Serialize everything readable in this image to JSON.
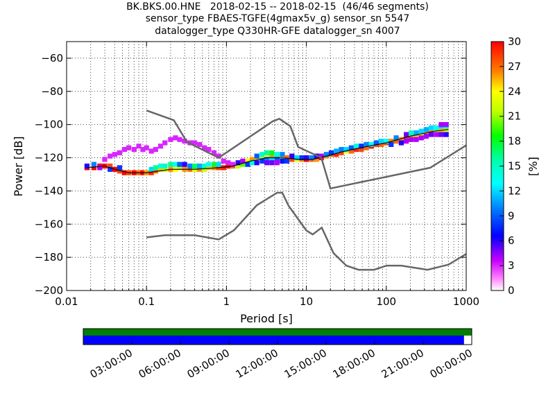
{
  "title": {
    "line1": "BK.BKS.00.HNE   2018-02-15 -- 2018-02-15  (46/46 segments)",
    "line2": "sensor_type FBAES-TGFE(4gmax5v_g) sensor_sn 5547",
    "line3": "datalogger_type Q330HR-GFE datalogger_sn 4007"
  },
  "chart_data": {
    "type": "heatmap",
    "xlabel": "Period [s]",
    "ylabel": "Power [dB]",
    "xscale": "log",
    "xlim": [
      0.01,
      1000
    ],
    "ylim": [
      -200,
      -50
    ],
    "x_ticks": [
      0.01,
      0.1,
      1,
      10,
      100,
      1000
    ],
    "x_tick_labels": [
      "0.01",
      "0.1",
      "1",
      "10",
      "100",
      "1000"
    ],
    "y_ticks": [
      -200,
      -180,
      -160,
      -140,
      -120,
      -100,
      -80,
      -60
    ],
    "y_tick_labels": [
      "−200",
      "−180",
      "−160",
      "−140",
      "−120",
      "−100",
      "−80",
      "−60"
    ],
    "grid": true,
    "colorbar": {
      "label": "[%]",
      "min": 0,
      "max": 30,
      "ticks": [
        0,
        3,
        6,
        9,
        12,
        15,
        18,
        21,
        24,
        27,
        30
      ],
      "tick_labels": [
        "0",
        "3",
        "6",
        "9",
        "12",
        "15",
        "18",
        "21",
        "24",
        "27",
        "30"
      ],
      "colormap": "pqlx"
    },
    "noise_models": {
      "color": "#666666",
      "high": {
        "period": [
          0.1,
          0.22,
          0.32,
          0.8,
          3.8,
          4.6,
          6.3,
          7.9,
          15.4,
          20,
          354.8,
          1000
        ],
        "power": [
          -91.5,
          -97.4,
          -110.5,
          -120,
          -98,
          -96.5,
          -101,
          -113.5,
          -120,
          -138.5,
          -126,
          -112.5
        ]
      },
      "low": {
        "period": [
          0.1,
          0.17,
          0.4,
          0.8,
          1.24,
          2.4,
          4.3,
          5,
          6,
          10,
          12,
          15.6,
          21.9,
          31.6,
          45,
          70,
          101,
          154,
          328,
          600,
          1000
        ],
        "power": [
          -168,
          -166.7,
          -166.7,
          -169.2,
          -163.7,
          -148.6,
          -141.1,
          -141.1,
          -149,
          -163.8,
          -166.2,
          -162.1,
          -177.5,
          -185,
          -187.5,
          -187.5,
          -185,
          -185,
          -187.5,
          -184.4,
          -178
        ]
      }
    },
    "ppsd_bins": [
      {
        "period": 0.018,
        "power": -126,
        "pct": 30
      },
      {
        "period": 0.018,
        "power": -125,
        "pct": 6
      },
      {
        "period": 0.022,
        "power": -126,
        "pct": 30
      },
      {
        "period": 0.022,
        "power": -124,
        "pct": 10
      },
      {
        "period": 0.026,
        "power": -125,
        "pct": 30
      },
      {
        "period": 0.026,
        "power": -126,
        "pct": 4
      },
      {
        "period": 0.03,
        "power": -125,
        "pct": 30
      },
      {
        "period": 0.03,
        "power": -121,
        "pct": 3
      },
      {
        "period": 0.035,
        "power": -125,
        "pct": 28
      },
      {
        "period": 0.035,
        "power": -127,
        "pct": 8
      },
      {
        "period": 0.035,
        "power": -119,
        "pct": 3
      },
      {
        "period": 0.04,
        "power": -127,
        "pct": 30
      },
      {
        "period": 0.04,
        "power": -118,
        "pct": 3
      },
      {
        "period": 0.046,
        "power": -128,
        "pct": 28
      },
      {
        "period": 0.046,
        "power": -126,
        "pct": 8
      },
      {
        "period": 0.046,
        "power": -117,
        "pct": 3
      },
      {
        "period": 0.053,
        "power": -129,
        "pct": 30
      },
      {
        "period": 0.053,
        "power": -115,
        "pct": 3
      },
      {
        "period": 0.06,
        "power": -129,
        "pct": 28
      },
      {
        "period": 0.06,
        "power": -114,
        "pct": 3
      },
      {
        "period": 0.07,
        "power": -129,
        "pct": 30
      },
      {
        "period": 0.07,
        "power": -115,
        "pct": 3
      },
      {
        "period": 0.08,
        "power": -129,
        "pct": 27
      },
      {
        "period": 0.08,
        "power": -113,
        "pct": 3
      },
      {
        "period": 0.09,
        "power": -129,
        "pct": 30
      },
      {
        "period": 0.09,
        "power": -115,
        "pct": 3
      },
      {
        "period": 0.1,
        "power": -129,
        "pct": 26
      },
      {
        "period": 0.1,
        "power": -114,
        "pct": 3
      },
      {
        "period": 0.115,
        "power": -129,
        "pct": 29
      },
      {
        "period": 0.115,
        "power": -127,
        "pct": 12
      },
      {
        "period": 0.115,
        "power": -116,
        "pct": 3
      },
      {
        "period": 0.13,
        "power": -128,
        "pct": 27
      },
      {
        "period": 0.13,
        "power": -126,
        "pct": 16
      },
      {
        "period": 0.13,
        "power": -115,
        "pct": 3
      },
      {
        "period": 0.15,
        "power": -127,
        "pct": 25
      },
      {
        "period": 0.15,
        "power": -125,
        "pct": 14
      },
      {
        "period": 0.15,
        "power": -113,
        "pct": 3
      },
      {
        "period": 0.17,
        "power": -127,
        "pct": 22
      },
      {
        "period": 0.17,
        "power": -125,
        "pct": 15
      },
      {
        "period": 0.17,
        "power": -111,
        "pct": 3
      },
      {
        "period": 0.2,
        "power": -127,
        "pct": 26
      },
      {
        "period": 0.2,
        "power": -124,
        "pct": 16
      },
      {
        "period": 0.2,
        "power": -109,
        "pct": 3
      },
      {
        "period": 0.23,
        "power": -127,
        "pct": 24
      },
      {
        "period": 0.23,
        "power": -124,
        "pct": 13
      },
      {
        "period": 0.23,
        "power": -108,
        "pct": 3
      },
      {
        "period": 0.26,
        "power": -126,
        "pct": 22
      },
      {
        "period": 0.26,
        "power": -124,
        "pct": 9
      },
      {
        "period": 0.26,
        "power": -109,
        "pct": 3
      },
      {
        "period": 0.3,
        "power": -127,
        "pct": 26
      },
      {
        "period": 0.3,
        "power": -124,
        "pct": 6
      },
      {
        "period": 0.3,
        "power": -110,
        "pct": 3
      },
      {
        "period": 0.35,
        "power": -127,
        "pct": 27
      },
      {
        "period": 0.35,
        "power": -125,
        "pct": 10
      },
      {
        "period": 0.35,
        "power": -111,
        "pct": 3
      },
      {
        "period": 0.4,
        "power": -127,
        "pct": 23
      },
      {
        "period": 0.4,
        "power": -125,
        "pct": 17
      },
      {
        "period": 0.4,
        "power": -111,
        "pct": 3
      },
      {
        "period": 0.46,
        "power": -127,
        "pct": 26
      },
      {
        "period": 0.46,
        "power": -125,
        "pct": 11
      },
      {
        "period": 0.46,
        "power": -112,
        "pct": 3
      },
      {
        "period": 0.53,
        "power": -127,
        "pct": 22
      },
      {
        "period": 0.53,
        "power": -125,
        "pct": 15
      },
      {
        "period": 0.53,
        "power": -114,
        "pct": 3
      },
      {
        "period": 0.6,
        "power": -126,
        "pct": 25
      },
      {
        "period": 0.6,
        "power": -124,
        "pct": 13
      },
      {
        "period": 0.6,
        "power": -115,
        "pct": 3
      },
      {
        "period": 0.7,
        "power": -126,
        "pct": 26
      },
      {
        "period": 0.7,
        "power": -124,
        "pct": 18
      },
      {
        "period": 0.7,
        "power": -117,
        "pct": 3
      },
      {
        "period": 0.8,
        "power": -126,
        "pct": 28
      },
      {
        "period": 0.8,
        "power": -124,
        "pct": 12
      },
      {
        "period": 0.8,
        "power": -119,
        "pct": 3
      },
      {
        "period": 0.92,
        "power": -126,
        "pct": 29
      },
      {
        "period": 0.92,
        "power": -122,
        "pct": 3
      },
      {
        "period": 1.05,
        "power": -125,
        "pct": 30
      },
      {
        "period": 1.05,
        "power": -123,
        "pct": 3
      },
      {
        "period": 1.2,
        "power": -125,
        "pct": 27
      },
      {
        "period": 1.2,
        "power": -124,
        "pct": 3
      },
      {
        "period": 1.4,
        "power": -125,
        "pct": 22
      },
      {
        "period": 1.4,
        "power": -123,
        "pct": 6
      },
      {
        "period": 1.6,
        "power": -124,
        "pct": 20
      },
      {
        "period": 1.6,
        "power": -122,
        "pct": 4
      },
      {
        "period": 1.85,
        "power": -122,
        "pct": 24
      },
      {
        "period": 1.85,
        "power": -124,
        "pct": 8
      },
      {
        "period": 2.1,
        "power": -121,
        "pct": 26
      },
      {
        "period": 2.1,
        "power": -123,
        "pct": 14
      },
      {
        "period": 2.4,
        "power": -121,
        "pct": 24
      },
      {
        "period": 2.4,
        "power": -119,
        "pct": 9
      },
      {
        "period": 2.4,
        "power": -123,
        "pct": 6
      },
      {
        "period": 2.8,
        "power": -120,
        "pct": 22
      },
      {
        "period": 2.8,
        "power": -118,
        "pct": 15
      },
      {
        "period": 2.8,
        "power": -122,
        "pct": 8
      },
      {
        "period": 3.2,
        "power": -119,
        "pct": 24
      },
      {
        "period": 3.2,
        "power": -117,
        "pct": 16
      },
      {
        "period": 3.2,
        "power": -121,
        "pct": 10
      },
      {
        "period": 3.2,
        "power": -123,
        "pct": 5
      },
      {
        "period": 3.7,
        "power": -119,
        "pct": 26
      },
      {
        "period": 3.7,
        "power": -117,
        "pct": 18
      },
      {
        "period": 3.7,
        "power": -121,
        "pct": 12
      },
      {
        "period": 3.7,
        "power": -123,
        "pct": 5
      },
      {
        "period": 4.3,
        "power": -119,
        "pct": 22
      },
      {
        "period": 4.3,
        "power": -118,
        "pct": 14
      },
      {
        "period": 4.3,
        "power": -121,
        "pct": 9
      },
      {
        "period": 4.3,
        "power": -123,
        "pct": 4
      },
      {
        "period": 5,
        "power": -120,
        "pct": 24
      },
      {
        "period": 5,
        "power": -118,
        "pct": 10
      },
      {
        "period": 5,
        "power": -122,
        "pct": 7
      },
      {
        "period": 5.7,
        "power": -120,
        "pct": 27
      },
      {
        "period": 5.7,
        "power": -122,
        "pct": 8
      },
      {
        "period": 6.6,
        "power": -121,
        "pct": 28
      },
      {
        "period": 6.6,
        "power": -119,
        "pct": 6
      },
      {
        "period": 7.6,
        "power": -121,
        "pct": 24
      },
      {
        "period": 7.6,
        "power": -120,
        "pct": 12
      },
      {
        "period": 8.8,
        "power": -121,
        "pct": 26
      },
      {
        "period": 8.8,
        "power": -120,
        "pct": 8
      },
      {
        "period": 10,
        "power": -121,
        "pct": 30
      },
      {
        "period": 10,
        "power": -120,
        "pct": 6
      },
      {
        "period": 11.6,
        "power": -121,
        "pct": 27
      },
      {
        "period": 11.6,
        "power": -120,
        "pct": 10
      },
      {
        "period": 13.4,
        "power": -121,
        "pct": 26
      },
      {
        "period": 13.4,
        "power": -119,
        "pct": 6
      },
      {
        "period": 15.4,
        "power": -120,
        "pct": 30
      },
      {
        "period": 15.4,
        "power": -119,
        "pct": 4
      },
      {
        "period": 17.8,
        "power": -119,
        "pct": 26
      },
      {
        "period": 17.8,
        "power": -118,
        "pct": 10
      },
      {
        "period": 20.5,
        "power": -118,
        "pct": 27
      },
      {
        "period": 20.5,
        "power": -117,
        "pct": 8
      },
      {
        "period": 23.7,
        "power": -118,
        "pct": 29
      },
      {
        "period": 23.7,
        "power": -116,
        "pct": 11
      },
      {
        "period": 27.4,
        "power": -117,
        "pct": 28
      },
      {
        "period": 27.4,
        "power": -115,
        "pct": 10
      },
      {
        "period": 31.6,
        "power": -116,
        "pct": 24
      },
      {
        "period": 31.6,
        "power": -115,
        "pct": 12
      },
      {
        "period": 36.5,
        "power": -116,
        "pct": 27
      },
      {
        "period": 36.5,
        "power": -114,
        "pct": 9
      },
      {
        "period": 42,
        "power": -115,
        "pct": 29
      },
      {
        "period": 42,
        "power": -113,
        "pct": 14
      },
      {
        "period": 48.7,
        "power": -115,
        "pct": 28
      },
      {
        "period": 48.7,
        "power": -113,
        "pct": 8
      },
      {
        "period": 56.2,
        "power": -114,
        "pct": 27
      },
      {
        "period": 56.2,
        "power": -112,
        "pct": 10
      },
      {
        "period": 65,
        "power": -113,
        "pct": 30
      },
      {
        "period": 65,
        "power": -112,
        "pct": 13
      },
      {
        "period": 75,
        "power": -112,
        "pct": 28
      },
      {
        "period": 75,
        "power": -111,
        "pct": 9
      },
      {
        "period": 86.6,
        "power": -112,
        "pct": 27
      },
      {
        "period": 86.6,
        "power": -110,
        "pct": 12
      },
      {
        "period": 100,
        "power": -111,
        "pct": 28
      },
      {
        "period": 100,
        "power": -110,
        "pct": 13
      },
      {
        "period": 115,
        "power": -110,
        "pct": 26
      },
      {
        "period": 115,
        "power": -112,
        "pct": 8
      },
      {
        "period": 133,
        "power": -110,
        "pct": 27
      },
      {
        "period": 133,
        "power": -108,
        "pct": 10
      },
      {
        "period": 154,
        "power": -109,
        "pct": 26
      },
      {
        "period": 154,
        "power": -111,
        "pct": 6
      },
      {
        "period": 178,
        "power": -108,
        "pct": 28
      },
      {
        "period": 178,
        "power": -106,
        "pct": 5
      },
      {
        "period": 178,
        "power": -110,
        "pct": 4
      },
      {
        "period": 205,
        "power": -107,
        "pct": 25
      },
      {
        "period": 205,
        "power": -105,
        "pct": 15
      },
      {
        "period": 205,
        "power": -109,
        "pct": 4
      },
      {
        "period": 237,
        "power": -107,
        "pct": 25
      },
      {
        "period": 237,
        "power": -105,
        "pct": 11
      },
      {
        "period": 237,
        "power": -109,
        "pct": 4
      },
      {
        "period": 274,
        "power": -106,
        "pct": 24
      },
      {
        "period": 274,
        "power": -104,
        "pct": 12
      },
      {
        "period": 274,
        "power": -108,
        "pct": 4
      },
      {
        "period": 316,
        "power": -105,
        "pct": 25
      },
      {
        "period": 316,
        "power": -103,
        "pct": 11
      },
      {
        "period": 316,
        "power": -107,
        "pct": 4
      },
      {
        "period": 365,
        "power": -104,
        "pct": 26
      },
      {
        "period": 365,
        "power": -102,
        "pct": 12
      },
      {
        "period": 365,
        "power": -106,
        "pct": 5
      },
      {
        "period": 422,
        "power": -104,
        "pct": 24
      },
      {
        "period": 422,
        "power": -102,
        "pct": 13
      },
      {
        "period": 422,
        "power": -106,
        "pct": 4
      },
      {
        "period": 487,
        "power": -103,
        "pct": 25
      },
      {
        "period": 487,
        "power": -101,
        "pct": 12
      },
      {
        "period": 487,
        "power": -100,
        "pct": 4
      },
      {
        "period": 487,
        "power": -106,
        "pct": 5
      },
      {
        "period": 562,
        "power": -103,
        "pct": 23
      },
      {
        "period": 562,
        "power": -101,
        "pct": 14
      },
      {
        "period": 562,
        "power": -100,
        "pct": 4
      },
      {
        "period": 562,
        "power": -106,
        "pct": 6
      }
    ],
    "mean_line": {
      "period": [
        0.018,
        0.03,
        0.04,
        0.06,
        0.1,
        0.2,
        0.4,
        0.8,
        1.2,
        2,
        3.2,
        5,
        8,
        12,
        18,
        30,
        60,
        100,
        200,
        400,
        600
      ],
      "power": [
        -126,
        -125,
        -127,
        -129,
        -129,
        -127,
        -127,
        -126,
        -125,
        -122,
        -120,
        -120,
        -121,
        -121,
        -119,
        -116,
        -113,
        -111,
        -107,
        -104,
        -103
      ]
    },
    "timeline": {
      "tick_labels": [
        "03:00:00",
        "06:00:00",
        "09:00:00",
        "12:00:00",
        "15:00:00",
        "18:00:00",
        "21:00:00",
        "00:00:00"
      ],
      "data_fraction": 0.98,
      "gap_fraction": 1.0,
      "colors": {
        "gaps_bar": "#007f00",
        "data_bar": "#0000ff"
      }
    }
  }
}
